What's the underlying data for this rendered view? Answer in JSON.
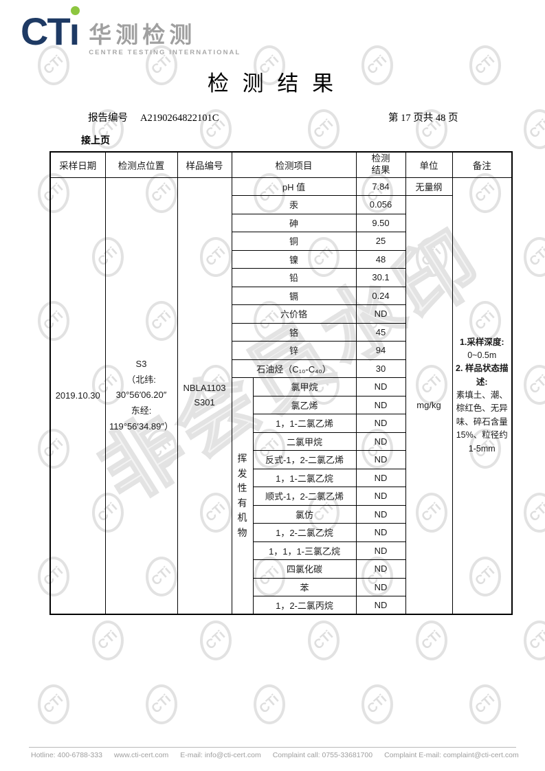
{
  "brand": {
    "logo_text": "CT",
    "logo_i": "ı",
    "logo_cn": "华测检测",
    "logo_en": "CENTRE TESTING INTERNATIONAL",
    "navy": "#1e3a64",
    "green": "#8dc63f",
    "gray": "#a0a0a0"
  },
  "title": "检 测 结 果",
  "report": {
    "label": "报告编号",
    "number": "A2190264822101C",
    "page_info": "第 17 页共 48 页",
    "continued": "接上页"
  },
  "watermark": {
    "stamp_text": "CTi",
    "diagonal_text": "非会员水印"
  },
  "table": {
    "headers": {
      "sampling_date": "采样日期",
      "location": "检测点位置",
      "sample_no": "样品编号",
      "item": "检测项目",
      "result": "检测\n结果",
      "unit": "单位",
      "remark": "备注"
    },
    "sample": {
      "date": "2019.10.30",
      "location_lines": [
        "S3",
        "（北纬:",
        "30°56′06.20″",
        "东经:",
        "119°56′34.89″）"
      ],
      "sample_no_lines": [
        "NBLA1103",
        "S301"
      ]
    },
    "voc_group_label": "挥发性有机物",
    "unit_ph": "无量纲",
    "unit_main": "mg/kg",
    "rows": [
      {
        "item": "pH 值",
        "result": "7.84",
        "voc": false
      },
      {
        "item": "汞",
        "result": "0.056",
        "voc": false
      },
      {
        "item": "砷",
        "result": "9.50",
        "voc": false
      },
      {
        "item": "铜",
        "result": "25",
        "voc": false
      },
      {
        "item": "镍",
        "result": "48",
        "voc": false
      },
      {
        "item": "铅",
        "result": "30.1",
        "voc": false
      },
      {
        "item": "镉",
        "result": "0.24",
        "voc": false
      },
      {
        "item": "六价铬",
        "result": "ND",
        "voc": false
      },
      {
        "item": "铬",
        "result": "45",
        "voc": false
      },
      {
        "item": "锌",
        "result": "94",
        "voc": false
      },
      {
        "item": "石油烃（C₁₀-C₄₀）",
        "result": "30",
        "voc": false
      },
      {
        "item": "氯甲烷",
        "result": "ND",
        "voc": true
      },
      {
        "item": "氯乙烯",
        "result": "ND",
        "voc": true
      },
      {
        "item": "1，1-二氯乙烯",
        "result": "ND",
        "voc": true
      },
      {
        "item": "二氯甲烷",
        "result": "ND",
        "voc": true
      },
      {
        "item": "反式-1，2-二氯乙烯",
        "result": "ND",
        "voc": true
      },
      {
        "item": "1，1-二氯乙烷",
        "result": "ND",
        "voc": true
      },
      {
        "item": "顺式-1，2-二氯乙烯",
        "result": "ND",
        "voc": true
      },
      {
        "item": "氯仿",
        "result": "ND",
        "voc": true
      },
      {
        "item": "1，2-二氯乙烷",
        "result": "ND",
        "voc": true
      },
      {
        "item": "1，1，1-三氯乙烷",
        "result": "ND",
        "voc": true
      },
      {
        "item": "四氯化碳",
        "result": "ND",
        "voc": true
      },
      {
        "item": "苯",
        "result": "ND",
        "voc": true
      },
      {
        "item": "1，2-二氯丙烷",
        "result": "ND",
        "voc": true
      }
    ],
    "remark_segments": [
      {
        "text": "1.采样深度:",
        "bold": true
      },
      {
        "text": "0~0.5m",
        "bold": false
      },
      {
        "text": "2. 样品状态描述:",
        "bold": true
      },
      {
        "text": "素填土、潮、棕红色、无异味、碎石含量 15%、粒径约 1-5mm",
        "bold": false
      }
    ]
  },
  "footer": {
    "items": [
      "Hotline: 400-6788-333",
      "www.cti-cert.com",
      "E-mail: info@cti-cert.com",
      "Complaint call: 0755-33681700",
      "Complaint E-mail: complaint@cti-cert.com"
    ]
  }
}
